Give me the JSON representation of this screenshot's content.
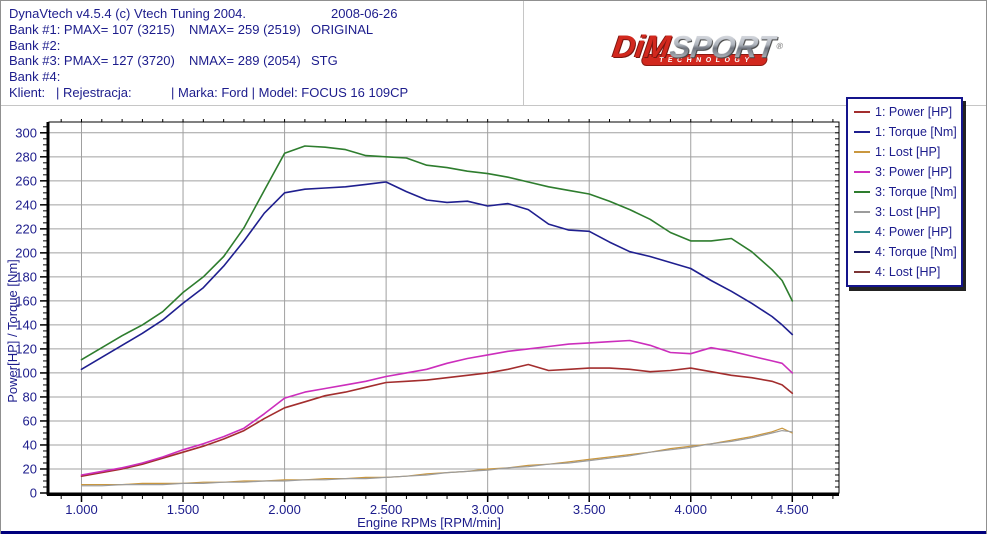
{
  "header": {
    "line1": "DynaVtech v4.5.4 (c) Vtech Tuning 2004.",
    "date": "2008-06-26",
    "bank1_left": "Bank #1: PMAX= 107 (3215)",
    "bank1_nmax": "NMAX= 259 (2519)",
    "bank1_tag": "ORIGINAL",
    "bank2": "Bank #2:",
    "bank3_left": "Bank #3: PMAX= 127 (3720)",
    "bank3_nmax": "NMAX= 289 (2054)",
    "bank3_tag": "STG",
    "bank4": "Bank #4:",
    "klient": "Klient:   | Rejestracja:",
    "marka_model": "| Marka: Ford | Model: FOCUS 16 109CP"
  },
  "logo": {
    "part1": "DiM",
    "part2": "SPORT",
    "reg": "®",
    "banner": "TECHNOLOGY",
    "red": "#d2281e",
    "silver": "#b9bcc2"
  },
  "legend": {
    "position": "top-right-outside",
    "items": [
      {
        "label": "1: Power [HP]",
        "color": "#a32e2e"
      },
      {
        "label": "1: Torque [Nm]",
        "color": "#1f1f8f"
      },
      {
        "label": "1: Lost [HP]",
        "color": "#c9973f"
      },
      {
        "label": "3: Power [HP]",
        "color": "#cc2ebc"
      },
      {
        "label": "3: Torque [Nm]",
        "color": "#2e7d2e"
      },
      {
        "label": "3: Lost [HP]",
        "color": "#9c9c9c"
      },
      {
        "label": "4: Power [HP]",
        "color": "#2e8b8b"
      },
      {
        "label": "4: Torque [Nm]",
        "color": "#1c1c66"
      },
      {
        "label": "4: Lost [HP]",
        "color": "#7d3535"
      }
    ]
  },
  "chart_data": {
    "type": "line",
    "title": "",
    "xlabel": "Engine RPMs [RPM/min]",
    "ylabel": "Power[HP] / Torque [Nm]",
    "xlim": [
      840,
      4730
    ],
    "ylim": [
      0,
      309
    ],
    "grid": true,
    "grid_color": "#a0a0a0",
    "text_color": "#1c1c8c",
    "xticks": {
      "major": [
        1000,
        1500,
        2000,
        2500,
        3000,
        3500,
        4000,
        4500
      ],
      "labels": [
        "1.000",
        "1.500",
        "2.000",
        "2.500",
        "3.000",
        "3.500",
        "4.000",
        "4.500"
      ],
      "minor_step": 100
    },
    "yticks": {
      "major_step": 20,
      "minor_step": 5,
      "min": 0,
      "max": 300
    },
    "x": [
      1000,
      1100,
      1200,
      1300,
      1400,
      1500,
      1600,
      1700,
      1800,
      1900,
      2000,
      2100,
      2200,
      2300,
      2400,
      2500,
      2600,
      2700,
      2800,
      2900,
      3000,
      3100,
      3200,
      3300,
      3400,
      3500,
      3600,
      3700,
      3800,
      3900,
      4000,
      4100,
      4200,
      4300,
      4400,
      4450,
      4500
    ],
    "series": [
      {
        "name": "1: Power [HP]",
        "color": "#a32e2e",
        "peak_note": "PMAX= 107 (3215)",
        "y": [
          14,
          17,
          20,
          24,
          29,
          34,
          39,
          45,
          52,
          62,
          71,
          76,
          81,
          84,
          88,
          92,
          93,
          94,
          96,
          98,
          100,
          103,
          107,
          102,
          103,
          104,
          104,
          103,
          101,
          102,
          104,
          101,
          98,
          96,
          93,
          90,
          83
        ]
      },
      {
        "name": "1: Torque [Nm]",
        "color": "#1f1f8f",
        "peak_note": "NMAX= 259 (2519)",
        "y": [
          103,
          113,
          123,
          133,
          144,
          158,
          171,
          189,
          210,
          233,
          250,
          253,
          254,
          255,
          257,
          259,
          251,
          244,
          242,
          243,
          239,
          241,
          236,
          224,
          219,
          218,
          209,
          201,
          197,
          192,
          187,
          177,
          168,
          158,
          147,
          140,
          132
        ]
      },
      {
        "name": "1: Lost [HP]",
        "color": "#c9973f",
        "y": [
          7,
          7,
          7,
          8,
          8,
          8,
          9,
          9,
          10,
          10,
          11,
          11,
          12,
          12,
          13,
          13,
          14,
          16,
          17,
          18,
          20,
          21,
          23,
          24,
          26,
          28,
          30,
          32,
          34,
          37,
          39,
          41,
          44,
          47,
          51,
          54,
          50
        ]
      },
      {
        "name": "3: Power [HP]",
        "color": "#cc2ebc",
        "peak_note": "PMAX= 127 (3720)",
        "y": [
          15,
          18,
          21,
          25,
          30,
          36,
          41,
          47,
          54,
          66,
          79,
          84,
          87,
          90,
          93,
          97,
          100,
          103,
          108,
          112,
          115,
          118,
          120,
          122,
          124,
          125,
          126,
          127,
          123,
          117,
          116,
          121,
          118,
          114,
          110,
          108,
          100
        ]
      },
      {
        "name": "3: Torque [Nm]",
        "color": "#2e7d2e",
        "peak_note": "NMAX= 289 (2054)",
        "y": [
          111,
          121,
          131,
          140,
          151,
          167,
          180,
          197,
          221,
          252,
          283,
          289,
          288,
          286,
          281,
          280,
          279,
          273,
          271,
          268,
          266,
          263,
          259,
          255,
          252,
          249,
          243,
          236,
          228,
          217,
          210,
          210,
          212,
          201,
          186,
          177,
          160
        ]
      },
      {
        "name": "3: Lost [HP]",
        "color": "#9c9c9c",
        "y": [
          6,
          6,
          7,
          7,
          7,
          8,
          8,
          9,
          9,
          10,
          10,
          11,
          11,
          12,
          12,
          13,
          14,
          15,
          17,
          18,
          19,
          21,
          22,
          24,
          25,
          27,
          29,
          31,
          34,
          36,
          38,
          41,
          43,
          46,
          50,
          52,
          51
        ]
      },
      {
        "name": "4: Power [HP]",
        "color": "#2e8b8b",
        "y": []
      },
      {
        "name": "4: Torque [Nm]",
        "color": "#1c1c66",
        "y": []
      },
      {
        "name": "4: Lost [HP]",
        "color": "#7d3535",
        "y": []
      }
    ]
  }
}
